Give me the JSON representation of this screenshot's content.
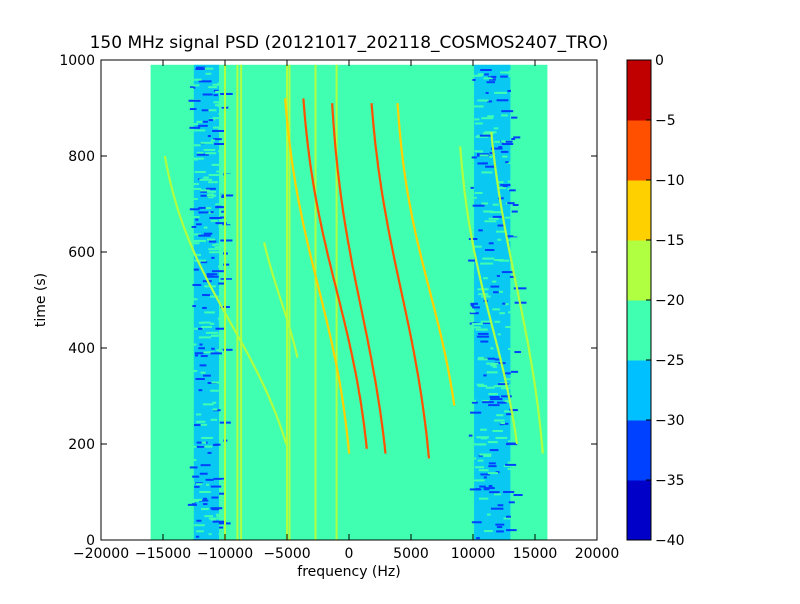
{
  "chart_data": {
    "type": "heatmap",
    "title": "150 MHz signal PSD (20121017_202118_COSMOS2407_TRO)",
    "xlabel": "frequency (Hz)",
    "ylabel": "time (s)",
    "xlim": [
      -20000,
      20000
    ],
    "ylim": [
      0,
      1000
    ],
    "x_ticks": [
      -20000,
      -15000,
      -10000,
      -5000,
      0,
      5000,
      10000,
      15000,
      20000
    ],
    "y_ticks": [
      0,
      200,
      400,
      600,
      800,
      1000
    ],
    "data_extent": {
      "x": [
        -16000,
        16000
      ],
      "y": [
        0,
        990
      ]
    },
    "colorbar": {
      "levels": [
        -40,
        -35,
        -30,
        -25,
        -20,
        -15,
        -10,
        -5,
        0
      ],
      "tick_labels": [
        "−40",
        "−35",
        "−30",
        "−25",
        "−20",
        "−15",
        "−10",
        "−5",
        "0"
      ],
      "colors": [
        "#0000c8",
        "#0040ff",
        "#00c0ff",
        "#40ffb0",
        "#b0ff40",
        "#ffd000",
        "#ff5000",
        "#c00000"
      ]
    },
    "background_level": -22.5,
    "noise_bands": [
      {
        "x": [
          -13000,
          -10000
        ],
        "level": -27.5
      },
      {
        "x": [
          9600,
          13500
        ],
        "level": -27.5
      }
    ],
    "vertical_lines": [
      {
        "x": -10000,
        "level": -17.5
      },
      {
        "x": -9000,
        "level": -17.5
      },
      {
        "x": -8700,
        "level": -17.5
      },
      {
        "x": -5000,
        "level": -17.5
      },
      {
        "x": -4800,
        "level": -17.5
      },
      {
        "x": -2700,
        "level": -17.5
      },
      {
        "x": -1000,
        "level": -17.5
      }
    ],
    "doppler_traces": [
      {
        "name": "",
        "center_x": -9500,
        "center_t": 450,
        "dx": 6500,
        "dt": 300,
        "t_range": [
          200,
          800
        ],
        "level": -17.5
      },
      {
        "name": "",
        "center_x": -5500,
        "center_t": 500,
        "dx": 2500,
        "dt": 200,
        "t_range": [
          380,
          620
        ],
        "level": -17.5
      },
      {
        "name": "",
        "center_x": -2500,
        "center_t": 530,
        "dx": 3200,
        "dt": 330,
        "t_range": [
          180,
          920
        ],
        "level": -12.5
      },
      {
        "name": "",
        "center_x": -1000,
        "center_t": 520,
        "dx": 3200,
        "dt": 330,
        "t_range": [
          190,
          920
        ],
        "level": -7.5
      },
      {
        "name": "",
        "center_x": 1000,
        "center_t": 480,
        "dx": 2800,
        "dt": 350,
        "t_range": [
          180,
          910
        ],
        "level": -7.5
      },
      {
        "name": "",
        "center_x": 4200,
        "center_t": 520,
        "dx": 3000,
        "dt": 360,
        "t_range": [
          170,
          910
        ],
        "level": -7.5
      },
      {
        "name": "",
        "center_x": 6500,
        "center_t": 520,
        "dx": 3000,
        "dt": 300,
        "t_range": [
          280,
          910
        ],
        "level": -12.5
      },
      {
        "name": "",
        "center_x": 11500,
        "center_t": 450,
        "dx": 3000,
        "dt": 300,
        "t_range": [
          200,
          820
        ],
        "level": -17.5
      },
      {
        "name": "",
        "center_x": 13500,
        "center_t": 530,
        "dx": 2800,
        "dt": 350,
        "t_range": [
          180,
          850
        ],
        "level": -17.5
      }
    ]
  }
}
